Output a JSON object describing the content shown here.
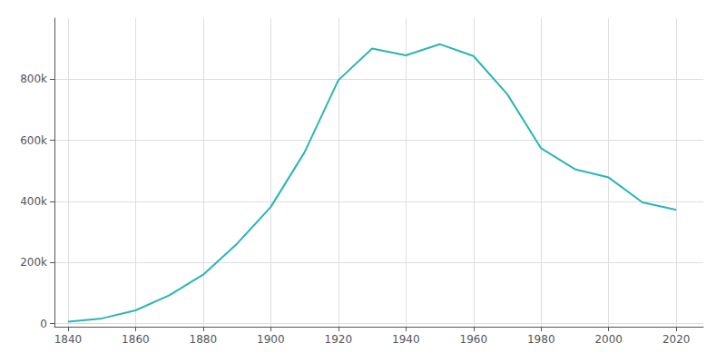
{
  "chart_data": {
    "type": "line",
    "x": [
      1840,
      1850,
      1860,
      1870,
      1880,
      1890,
      1900,
      1910,
      1920,
      1930,
      1940,
      1950,
      1960,
      1970,
      1980,
      1990,
      2000,
      2010,
      2020
    ],
    "values": [
      6071,
      17034,
      43417,
      92829,
      160146,
      261353,
      381768,
      560663,
      796841,
      900429,
      878336,
      914808,
      876050,
      750903,
      573822,
      505616,
      478403,
      396815,
      372624
    ],
    "color": "#2ab5b5",
    "xlim": [
      1836,
      2028
    ],
    "ylim": [
      -10000,
      1000000
    ],
    "xticks": [
      1840,
      1860,
      1880,
      1900,
      1920,
      1940,
      1960,
      1980,
      2000,
      2020
    ],
    "yticks": [
      0,
      {
        "value": 200000,
        "label": "200k"
      },
      {
        "value": 400000,
        "label": "400k"
      },
      {
        "value": 600000,
        "label": "600k"
      },
      {
        "value": 800000,
        "label": "800k"
      }
    ],
    "grid": true
  }
}
